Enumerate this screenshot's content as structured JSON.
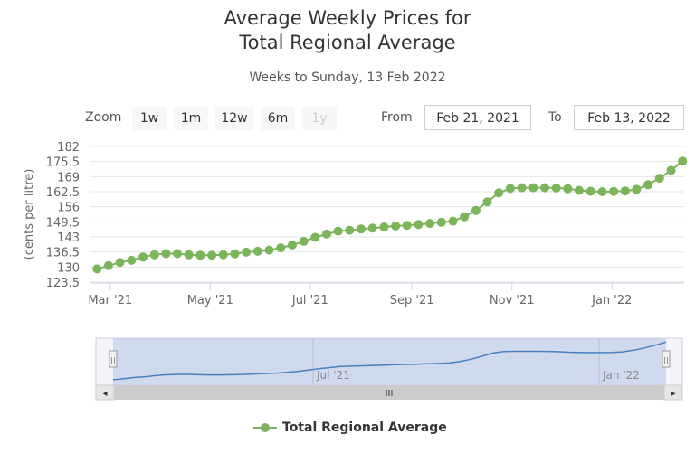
{
  "title_line1": "Average Weekly Prices for",
  "title_line2": "Total Regional Average",
  "subtitle": "Weeks to Sunday, 13 Feb 2022",
  "range_selector": {
    "zoom_label": "Zoom",
    "buttons": [
      "1w",
      "1m",
      "12w",
      "6m",
      "1y"
    ],
    "disabled_button": "1y",
    "from_label": "From",
    "from_value": "Feb 21, 2021",
    "to_label": "To",
    "to_value": "Feb 13, 2022"
  },
  "navigator": {
    "labels": [
      "Jul '21",
      "Jan '22"
    ],
    "scrollbar_grip": "III",
    "left_arrow": "◂",
    "right_arrow": "▸",
    "handle_grip": "||"
  },
  "colors": {
    "series": "#7cb45c",
    "navigator_line": "#4a7fc1",
    "navigator_fill": "#c9d3ea"
  },
  "chart_data": {
    "type": "line",
    "title": "Average Weekly Prices for Total Regional Average",
    "subtitle": "Weeks to Sunday, 13 Feb 2022",
    "ylabel": "(cents per litre)",
    "xlabel": "",
    "y_ticks": [
      "182",
      "175.5",
      "169",
      "162.5",
      "156",
      "149.5",
      "143",
      "136.5",
      "130",
      "123.5"
    ],
    "y_range": [
      123.5,
      182
    ],
    "x_ticks": [
      "Mar '21",
      "May '21",
      "Jul '21",
      "Sep '21",
      "Nov '21",
      "Jan '22"
    ],
    "x_range": [
      "2021-02-21",
      "2022-02-13"
    ],
    "legend_position": "bottom",
    "grid": true,
    "series": [
      {
        "name": "Total Regional Average",
        "color": "#7cb45c",
        "points": [
          [
            "2021-02-21",
            129.2
          ],
          [
            "2021-02-28",
            130.6
          ],
          [
            "2021-03-07",
            132.0
          ],
          [
            "2021-03-14",
            132.9
          ],
          [
            "2021-03-21",
            134.3
          ],
          [
            "2021-03-28",
            135.3
          ],
          [
            "2021-04-04",
            135.8
          ],
          [
            "2021-04-11",
            135.8
          ],
          [
            "2021-04-18",
            135.3
          ],
          [
            "2021-04-25",
            135.1
          ],
          [
            "2021-05-02",
            135.1
          ],
          [
            "2021-05-09",
            135.3
          ],
          [
            "2021-05-16",
            135.7
          ],
          [
            "2021-05-23",
            136.4
          ],
          [
            "2021-05-30",
            136.8
          ],
          [
            "2021-06-06",
            137.3
          ],
          [
            "2021-06-13",
            138.3
          ],
          [
            "2021-06-20",
            139.5
          ],
          [
            "2021-06-27",
            141.1
          ],
          [
            "2021-07-04",
            142.8
          ],
          [
            "2021-07-11",
            144.2
          ],
          [
            "2021-07-18",
            145.5
          ],
          [
            "2021-07-25",
            145.9
          ],
          [
            "2021-08-01",
            146.4
          ],
          [
            "2021-08-08",
            146.8
          ],
          [
            "2021-08-15",
            147.3
          ],
          [
            "2021-08-22",
            147.7
          ],
          [
            "2021-08-29",
            148.0
          ],
          [
            "2021-09-05",
            148.4
          ],
          [
            "2021-09-12",
            148.8
          ],
          [
            "2021-09-19",
            149.3
          ],
          [
            "2021-09-26",
            149.8
          ],
          [
            "2021-10-03",
            151.7
          ],
          [
            "2021-10-10",
            154.4
          ],
          [
            "2021-10-17",
            158.1
          ],
          [
            "2021-10-24",
            162.0
          ],
          [
            "2021-10-31",
            163.9
          ],
          [
            "2021-11-07",
            164.2
          ],
          [
            "2021-11-14",
            164.2
          ],
          [
            "2021-11-21",
            164.2
          ],
          [
            "2021-11-28",
            164.1
          ],
          [
            "2021-12-05",
            163.8
          ],
          [
            "2021-12-12",
            163.1
          ],
          [
            "2021-12-19",
            162.7
          ],
          [
            "2021-12-26",
            162.5
          ],
          [
            "2022-01-02",
            162.6
          ],
          [
            "2022-01-09",
            162.8
          ],
          [
            "2022-01-16",
            163.5
          ],
          [
            "2022-01-23",
            165.5
          ],
          [
            "2022-01-30",
            168.3
          ],
          [
            "2022-02-06",
            171.7
          ],
          [
            "2022-02-13",
            175.7
          ]
        ]
      }
    ]
  }
}
